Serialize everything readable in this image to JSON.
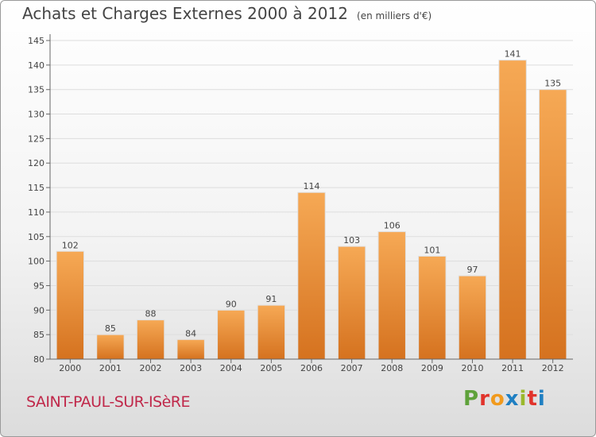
{
  "title": "Achats et Charges Externes 2000 à 2012",
  "unit": "(en milliers d'€)",
  "location": "SAINT-PAUL-SUR-ISèRE",
  "brand": "Proxiti",
  "colors": {
    "bar_light": "#f6a955",
    "bar_dark": "#d5721f",
    "grid": "#dddddd",
    "axis": "#666666",
    "text": "#444444",
    "location": "#c0284a"
  },
  "chart_data": {
    "type": "bar",
    "title": "Achats et Charges Externes 2000 à 2012",
    "xlabel": "",
    "ylabel": "",
    "categories": [
      "2000",
      "2001",
      "2002",
      "2003",
      "2004",
      "2005",
      "2006",
      "2007",
      "2008",
      "2009",
      "2010",
      "2011",
      "2012"
    ],
    "values": [
      102,
      85,
      88,
      84,
      90,
      91,
      114,
      103,
      106,
      101,
      97,
      141,
      135
    ],
    "ylim": [
      80,
      145
    ],
    "yticks": [
      80,
      85,
      90,
      95,
      100,
      105,
      110,
      115,
      120,
      125,
      130,
      135,
      140,
      145
    ],
    "grid": true,
    "legend": "none"
  }
}
